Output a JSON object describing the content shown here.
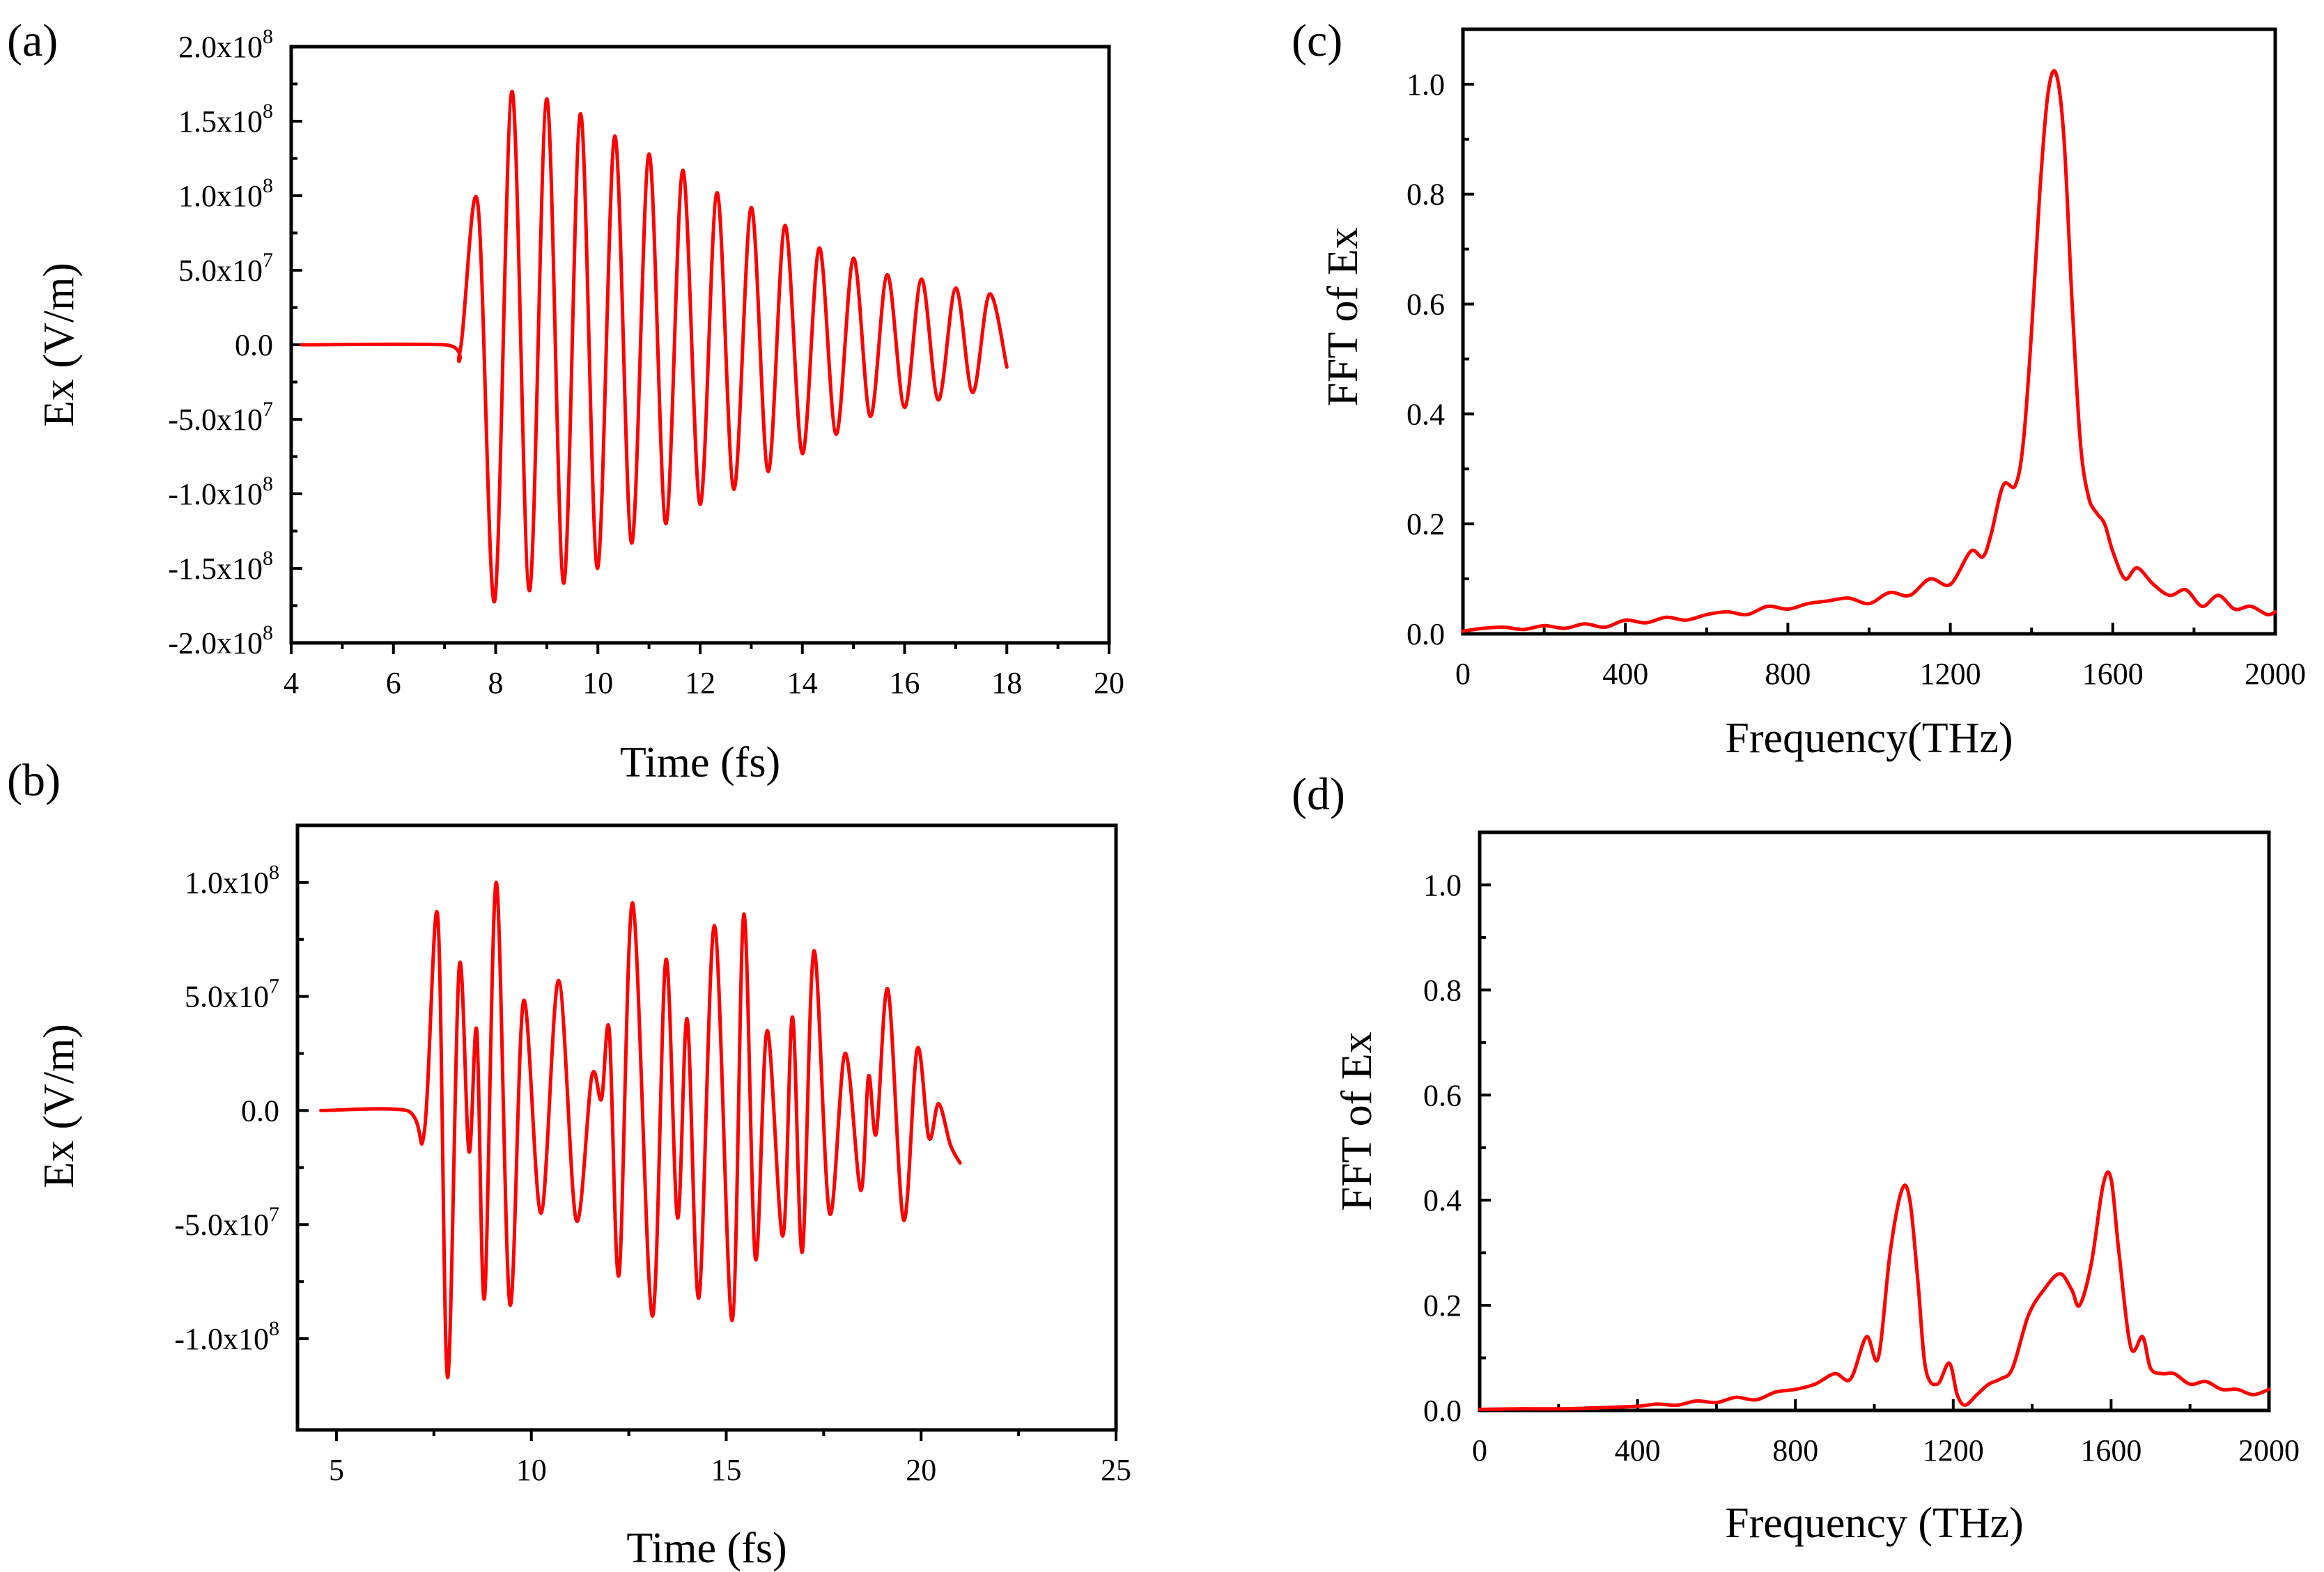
{
  "chart_data": [
    {
      "id": "a",
      "panel_label": "(a)",
      "type": "line",
      "xlabel": "Time (fs)",
      "ylabel": "Ex (V/m)",
      "xlim": [
        4,
        20
      ],
      "ylim": [
        -200000000,
        200000000
      ],
      "x_ticks": [
        {
          "value": 4,
          "label": "4"
        },
        {
          "value": 6,
          "label": "6"
        },
        {
          "value": 8,
          "label": "8"
        },
        {
          "value": 10,
          "label": "10"
        },
        {
          "value": 12,
          "label": "12"
        },
        {
          "value": 14,
          "label": "14"
        },
        {
          "value": 16,
          "label": "16"
        },
        {
          "value": 18,
          "label": "18"
        },
        {
          "value": 20,
          "label": "20"
        }
      ],
      "y_ticks": [
        {
          "value": 200000000,
          "label": "2.0x10",
          "exp": "8"
        },
        {
          "value": 150000000,
          "label": "1.5x10",
          "exp": "8"
        },
        {
          "value": 100000000,
          "label": "1.0x10",
          "exp": "8"
        },
        {
          "value": 50000000,
          "label": "5.0x10",
          "exp": "7"
        },
        {
          "value": 0,
          "label": "0.0",
          "exp": ""
        },
        {
          "value": -50000000,
          "label": "-5.0x10",
          "exp": "7"
        },
        {
          "value": -100000000,
          "label": "-1.0x10",
          "exp": "8"
        },
        {
          "value": -150000000,
          "label": "-1.5x10",
          "exp": "8"
        },
        {
          "value": -200000000,
          "label": "-2.0x10",
          "exp": "8"
        }
      ],
      "series": [
        {
          "name": "Ex",
          "color": "#ff0000",
          "x": [
            4.2,
            7.0,
            7.3,
            7.65,
            7.98,
            8.32,
            8.66,
            9.0,
            9.33,
            9.66,
            9.99,
            10.33,
            10.66,
            11.0,
            11.33,
            11.66,
            12.0,
            12.33,
            12.66,
            13.0,
            13.33,
            13.66,
            14.0,
            14.33,
            14.66,
            15.0,
            15.33,
            15.66,
            16.0,
            16.33,
            16.66,
            17.0,
            17.33,
            17.66,
            18.0
          ],
          "y": [
            0,
            0,
            -5000000,
            95000000,
            -172000000,
            170000000,
            -165000000,
            165000000,
            -160000000,
            155000000,
            -150000000,
            140000000,
            -133000000,
            128000000,
            -120000000,
            117000000,
            -107000000,
            102000000,
            -97000000,
            92000000,
            -85000000,
            80000000,
            -73000000,
            65000000,
            -60000000,
            58000000,
            -48000000,
            47000000,
            -42000000,
            44000000,
            -37000000,
            38000000,
            -32000000,
            34000000,
            -15000000
          ]
        }
      ]
    },
    {
      "id": "b",
      "panel_label": "(b)",
      "type": "line",
      "xlabel": "Time (fs)",
      "ylabel": "Ex (V/m)",
      "xlim": [
        4,
        25
      ],
      "ylim": [
        -140000000,
        125000000
      ],
      "x_ticks": [
        {
          "value": 5,
          "label": "5"
        },
        {
          "value": 10,
          "label": "10"
        },
        {
          "value": 15,
          "label": "15"
        },
        {
          "value": 20,
          "label": "20"
        },
        {
          "value": 25,
          "label": "25"
        }
      ],
      "y_ticks": [
        {
          "value": 100000000,
          "label": "1.0x10",
          "exp": "8"
        },
        {
          "value": 50000000,
          "label": "5.0x10",
          "exp": "7"
        },
        {
          "value": 0,
          "label": "0.0",
          "exp": ""
        },
        {
          "value": -50000000,
          "label": "-5.0x10",
          "exp": "7"
        },
        {
          "value": -100000000,
          "label": "-1.0x10",
          "exp": "8"
        }
      ],
      "series": [
        {
          "name": "Ex",
          "color": "#ff0000",
          "x": [
            4.6,
            6.8,
            7.25,
            7.6,
            7.85,
            8.15,
            8.4,
            8.6,
            8.8,
            9.1,
            9.45,
            9.8,
            10.25,
            10.7,
            11.15,
            11.55,
            11.8,
            12.0,
            12.25,
            12.6,
            13.1,
            13.45,
            13.75,
            14.0,
            14.3,
            14.7,
            15.15,
            15.45,
            15.75,
            16.05,
            16.45,
            16.7,
            16.95,
            17.25,
            17.65,
            18.05,
            18.45,
            18.65,
            18.85,
            19.15,
            19.55,
            19.9,
            20.2,
            20.45,
            20.75,
            21.0
          ],
          "y": [
            0,
            0,
            -10000000,
            85000000,
            -117000000,
            63000000,
            -18000000,
            35000000,
            -82000000,
            100000000,
            -85000000,
            48000000,
            -45000000,
            57000000,
            -48000000,
            15000000,
            5000000,
            35000000,
            -72000000,
            91000000,
            -90000000,
            66000000,
            -47000000,
            40000000,
            -82000000,
            81000000,
            -92000000,
            86000000,
            -65000000,
            35000000,
            -55000000,
            41000000,
            -62000000,
            70000000,
            -45000000,
            25000000,
            -35000000,
            15000000,
            -10000000,
            53000000,
            -48000000,
            27000000,
            -12000000,
            3000000,
            -15000000,
            -23000000
          ]
        }
      ]
    },
    {
      "id": "c",
      "panel_label": "(c)",
      "type": "line",
      "xlabel": "Frequency(THz)",
      "ylabel": "FFT of Ex",
      "xlim": [
        0,
        2000
      ],
      "ylim": [
        0,
        1.1
      ],
      "x_ticks": [
        {
          "value": 0,
          "label": "0"
        },
        {
          "value": 400,
          "label": "400"
        },
        {
          "value": 800,
          "label": "800"
        },
        {
          "value": 1200,
          "label": "1200"
        },
        {
          "value": 1600,
          "label": "1600"
        },
        {
          "value": 2000,
          "label": "2000"
        }
      ],
      "y_ticks": [
        {
          "value": 0.0,
          "label": "0.0"
        },
        {
          "value": 0.2,
          "label": "0.2"
        },
        {
          "value": 0.4,
          "label": "0.4"
        },
        {
          "value": 0.6,
          "label": "0.6"
        },
        {
          "value": 0.8,
          "label": "0.8"
        },
        {
          "value": 1.0,
          "label": "1.0"
        }
      ],
      "series": [
        {
          "name": "FFT of Ex",
          "color": "#ff0000",
          "x": [
            0,
            50,
            100,
            150,
            200,
            250,
            300,
            350,
            400,
            450,
            500,
            550,
            600,
            650,
            700,
            750,
            800,
            850,
            900,
            950,
            1000,
            1050,
            1100,
            1150,
            1200,
            1250,
            1280,
            1300,
            1330,
            1360,
            1380,
            1400,
            1420,
            1440,
            1460,
            1480,
            1500,
            1520,
            1540,
            1560,
            1580,
            1600,
            1630,
            1660,
            1700,
            1740,
            1780,
            1820,
            1860,
            1900,
            1940,
            1980,
            2000
          ],
          "y": [
            0.005,
            0.01,
            0.012,
            0.008,
            0.015,
            0.01,
            0.018,
            0.012,
            0.025,
            0.02,
            0.03,
            0.025,
            0.035,
            0.04,
            0.035,
            0.05,
            0.045,
            0.055,
            0.06,
            0.065,
            0.055,
            0.075,
            0.07,
            0.1,
            0.09,
            0.15,
            0.14,
            0.18,
            0.27,
            0.27,
            0.35,
            0.55,
            0.8,
            0.98,
            1.02,
            0.9,
            0.6,
            0.35,
            0.25,
            0.22,
            0.2,
            0.15,
            0.1,
            0.12,
            0.09,
            0.07,
            0.08,
            0.05,
            0.07,
            0.045,
            0.05,
            0.035,
            0.04
          ]
        }
      ]
    },
    {
      "id": "d",
      "panel_label": "(d)",
      "type": "line",
      "xlabel": "Frequency (THz)",
      "ylabel": "FFT of Ex",
      "xlim": [
        0,
        2000
      ],
      "ylim": [
        0,
        1.1
      ],
      "x_ticks": [
        {
          "value": 0,
          "label": "0"
        },
        {
          "value": 400,
          "label": "400"
        },
        {
          "value": 800,
          "label": "800"
        },
        {
          "value": 1200,
          "label": "1200"
        },
        {
          "value": 1600,
          "label": "1600"
        },
        {
          "value": 2000,
          "label": "2000"
        }
      ],
      "y_ticks": [
        {
          "value": 0.0,
          "label": "0.0"
        },
        {
          "value": 0.2,
          "label": "0.2"
        },
        {
          "value": 0.4,
          "label": "0.4"
        },
        {
          "value": 0.6,
          "label": "0.6"
        },
        {
          "value": 0.8,
          "label": "0.8"
        },
        {
          "value": 1.0,
          "label": "1.0"
        }
      ],
      "series": [
        {
          "name": "FFT of Ex",
          "color": "#ff0000",
          "x": [
            0,
            100,
            200,
            300,
            400,
            450,
            500,
            550,
            600,
            650,
            700,
            750,
            800,
            850,
            900,
            940,
            980,
            1010,
            1040,
            1070,
            1090,
            1110,
            1130,
            1160,
            1190,
            1210,
            1230,
            1260,
            1290,
            1320,
            1350,
            1390,
            1430,
            1470,
            1500,
            1520,
            1550,
            1580,
            1600,
            1620,
            1650,
            1680,
            1700,
            1730,
            1760,
            1800,
            1840,
            1880,
            1920,
            1960,
            2000
          ],
          "y": [
            0.002,
            0.003,
            0.003,
            0.005,
            0.008,
            0.012,
            0.01,
            0.018,
            0.015,
            0.025,
            0.02,
            0.035,
            0.04,
            0.05,
            0.07,
            0.06,
            0.14,
            0.1,
            0.3,
            0.42,
            0.4,
            0.25,
            0.08,
            0.05,
            0.09,
            0.03,
            0.01,
            0.03,
            0.05,
            0.06,
            0.08,
            0.18,
            0.23,
            0.26,
            0.23,
            0.2,
            0.28,
            0.43,
            0.44,
            0.3,
            0.12,
            0.14,
            0.08,
            0.07,
            0.07,
            0.05,
            0.055,
            0.04,
            0.04,
            0.03,
            0.04
          ]
        }
      ]
    }
  ]
}
